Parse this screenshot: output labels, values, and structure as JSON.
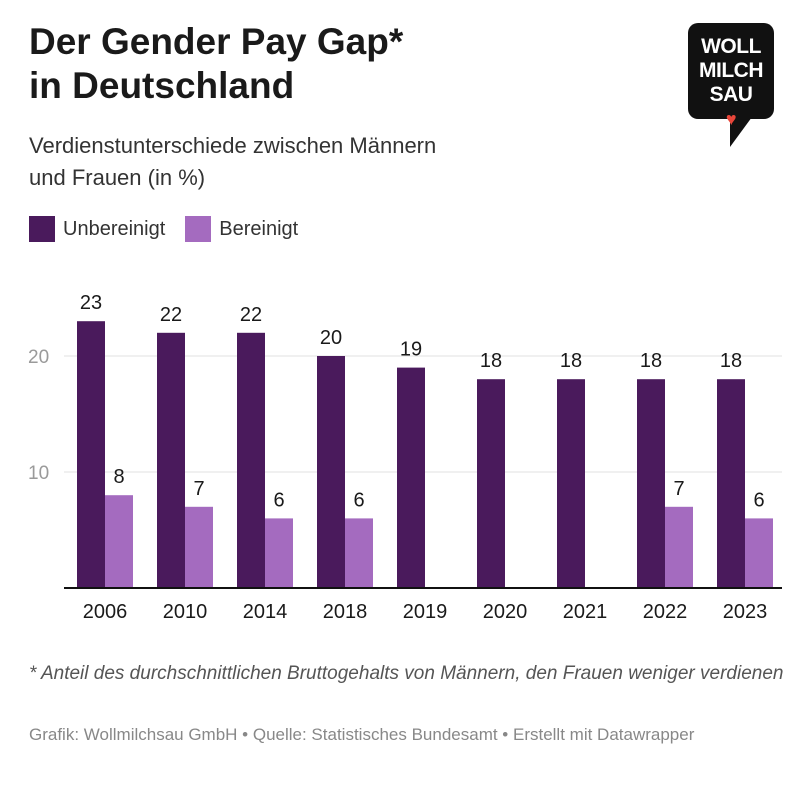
{
  "header": {
    "title_line1": "Der Gender Pay Gap*",
    "title_line2": "in Deutschland",
    "subtitle_line1": "Verdienstunterschiede zwischen Männern",
    "subtitle_line2": "und Frauen (in %)"
  },
  "logo": {
    "line1": "WOLL",
    "line2": "MILCH",
    "line3": "SAU",
    "heart": "♥"
  },
  "legend": {
    "unbereinigt": "Unbereinigt",
    "bereinigt": "Bereinigt"
  },
  "colors": {
    "unbereinigt": "#4a1a5c",
    "bereinigt": "#a46bbf"
  },
  "chart_data": {
    "type": "bar",
    "title": "Der Gender Pay Gap* in Deutschland",
    "subtitle": "Verdienstunterschiede zwischen Männern und Frauen (in %)",
    "xlabel": "",
    "ylabel": "",
    "categories": [
      "2006",
      "2010",
      "2014",
      "2018",
      "2019",
      "2020",
      "2021",
      "2022",
      "2023"
    ],
    "series": [
      {
        "name": "Unbereinigt",
        "values": [
          23,
          22,
          22,
          20,
          19,
          18,
          18,
          18,
          18
        ]
      },
      {
        "name": "Bereinigt",
        "values": [
          8,
          7,
          6,
          6,
          null,
          null,
          null,
          7,
          6
        ]
      }
    ],
    "yticks": [
      10,
      20
    ],
    "ylim": [
      0,
      25
    ],
    "grid": true,
    "legend_position": "top-left"
  },
  "footnote": "* Anteil des durchschnittlichen Bruttogehalts von Männern, den Frauen weniger verdienen",
  "source": "Grafik: Wollmilchsau GmbH  • Quelle: Statistisches Bundesamt • Erstellt mit Datawrapper"
}
